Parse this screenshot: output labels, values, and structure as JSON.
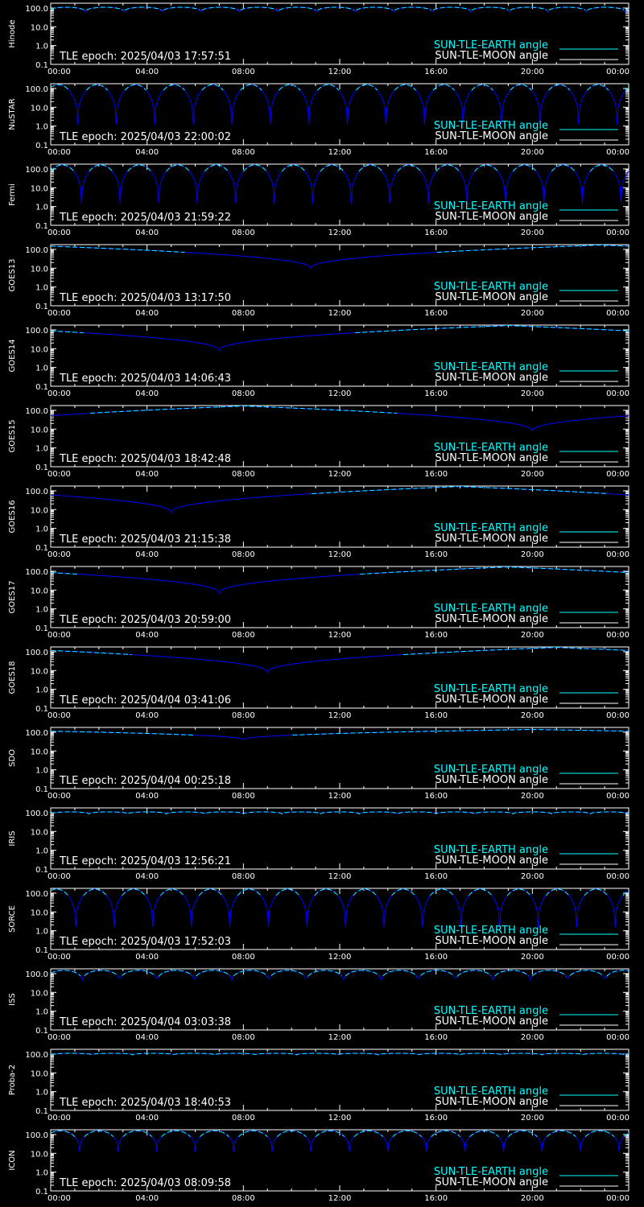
{
  "colors": {
    "background": "#000000",
    "axes": "#ffffff",
    "sun_earth": "#00ffff",
    "sun_moon": "#ffffff",
    "trace": "#0000ff"
  },
  "legend": {
    "sun_earth_label": "SUN-TLE-EARTH angle",
    "sun_moon_label": "SUN-TLE-MOON angle"
  },
  "axes": {
    "x_ticks": [
      "00:00",
      "04:00",
      "08:00",
      "12:00",
      "16:00",
      "20:00",
      "00:00"
    ],
    "y_ticks": [
      "100.0",
      "10.0",
      "1.0",
      "0.1"
    ],
    "y_scale": "log",
    "ylim": [
      0.1,
      180
    ]
  },
  "chart_data": [
    {
      "type": "line",
      "satellite": "Hinode",
      "epoch_text": "TLE epoch: 2025/04/03 17:57:51",
      "series": [
        {
          "name": "SUN-TLE-EARTH angle",
          "model": "orbit",
          "period_hours": 1.6,
          "min": 60,
          "max": 110,
          "phase": 0.1
        }
      ]
    },
    {
      "type": "line",
      "satellite": "NuSTAR",
      "epoch_text": "TLE epoch: 2025/04/03 22:00:02",
      "series": [
        {
          "name": "SUN-TLE-EARTH angle",
          "model": "orbit",
          "period_hours": 1.6,
          "min": 1.2,
          "max": 160,
          "phase": 0.3
        }
      ]
    },
    {
      "type": "line",
      "satellite": "Fermi",
      "epoch_text": "TLE epoch: 2025/04/03 21:59:22",
      "series": [
        {
          "name": "SUN-TLE-EARTH angle",
          "model": "orbit",
          "period_hours": 1.6,
          "min": 1.5,
          "max": 165,
          "phase": 0.2
        }
      ]
    },
    {
      "type": "line",
      "satellite": "GOES13",
      "epoch_text": "TLE epoch: 2025/04/03 13:17:50",
      "series": [
        {
          "name": "SUN-TLE-EARTH angle",
          "model": "geo",
          "min_time_hours": 10.8,
          "min": 10,
          "max": 170
        }
      ]
    },
    {
      "type": "line",
      "satellite": "GOES14",
      "epoch_text": "TLE epoch: 2025/04/03 14:06:43",
      "series": [
        {
          "name": "SUN-TLE-EARTH angle",
          "model": "geo",
          "min_time_hours": 7.0,
          "min": 8,
          "max": 170
        }
      ]
    },
    {
      "type": "line",
      "satellite": "GOES15",
      "epoch_text": "TLE epoch: 2025/04/03 18:42:48",
      "series": [
        {
          "name": "SUN-TLE-EARTH angle",
          "model": "geo",
          "min_time_hours": 20.0,
          "min": 8,
          "max": 170
        }
      ]
    },
    {
      "type": "line",
      "satellite": "GOES16",
      "epoch_text": "TLE epoch: 2025/04/03 21:15:38",
      "series": [
        {
          "name": "SUN-TLE-EARTH angle",
          "model": "geo",
          "min_time_hours": 5.0,
          "min": 7,
          "max": 170
        }
      ]
    },
    {
      "type": "line",
      "satellite": "GOES17",
      "epoch_text": "TLE epoch: 2025/04/03 20:59:00",
      "series": [
        {
          "name": "SUN-TLE-EARTH angle",
          "model": "geo",
          "min_time_hours": 7.0,
          "min": 7,
          "max": 170
        }
      ]
    },
    {
      "type": "line",
      "satellite": "GOES18",
      "epoch_text": "TLE epoch: 2025/04/04 03:41:06",
      "series": [
        {
          "name": "SUN-TLE-EARTH angle",
          "model": "geo",
          "min_time_hours": 9.0,
          "min": 8,
          "max": 170
        }
      ]
    },
    {
      "type": "line",
      "satellite": "SDO",
      "epoch_text": "TLE epoch: 2025/04/04 00:25:18",
      "series": [
        {
          "name": "SUN-TLE-EARTH angle",
          "model": "geo",
          "min_time_hours": 8.0,
          "min": 40,
          "max": 140
        }
      ]
    },
    {
      "type": "line",
      "satellite": "IRIS",
      "epoch_text": "TLE epoch: 2025/04/03 12:56:21",
      "series": [
        {
          "name": "SUN-TLE-EARTH angle",
          "model": "orbit",
          "period_hours": 1.6,
          "min": 85,
          "max": 110,
          "phase": 0.0
        }
      ]
    },
    {
      "type": "line",
      "satellite": "SORCE",
      "epoch_text": "TLE epoch: 2025/04/03 17:52:03",
      "series": [
        {
          "name": "SUN-TLE-EARTH angle",
          "model": "orbit",
          "period_hours": 1.6,
          "min": 1.5,
          "max": 165,
          "phase": 0.35
        }
      ]
    },
    {
      "type": "line",
      "satellite": "ISS",
      "epoch_text": "TLE epoch: 2025/04/04 03:03:38",
      "series": [
        {
          "name": "SUN-TLE-EARTH angle",
          "model": "orbit",
          "period_hours": 1.55,
          "min": 35,
          "max": 150,
          "phase": 0.15
        }
      ]
    },
    {
      "type": "line",
      "satellite": "Proba-2",
      "epoch_text": "TLE epoch: 2025/04/03 18:40:53",
      "series": [
        {
          "name": "SUN-TLE-EARTH angle",
          "model": "orbit",
          "period_hours": 1.7,
          "min": 90,
          "max": 110,
          "phase": 0.0
        }
      ]
    },
    {
      "type": "line",
      "satellite": "ICON",
      "epoch_text": "TLE epoch: 2025/04/03 08:09:58",
      "series": [
        {
          "name": "SUN-TLE-EARTH angle",
          "model": "orbit",
          "period_hours": 1.6,
          "min": 12,
          "max": 160,
          "phase": 0.25
        }
      ]
    }
  ]
}
